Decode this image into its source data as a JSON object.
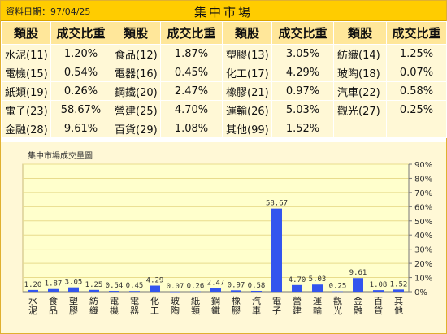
{
  "header": {
    "date_label": "資料日期：",
    "date": "97/04/25",
    "title": "集中市場"
  },
  "table": {
    "headers": [
      "類股",
      "成交比重",
      "類股",
      "成交比重",
      "類股",
      "成交比重",
      "類股",
      "成交比重"
    ],
    "rows": [
      [
        [
          "水泥(11)",
          "1.20%"
        ],
        [
          "食品(12)",
          "1.87%"
        ],
        [
          "塑膠(13)",
          "3.05%"
        ],
        [
          "紡織(14)",
          "1.25%"
        ]
      ],
      [
        [
          "電機(15)",
          "0.54%"
        ],
        [
          "電器(16)",
          "0.45%"
        ],
        [
          "化工(17)",
          "4.29%"
        ],
        [
          "玻陶(18)",
          "0.07%"
        ]
      ],
      [
        [
          "紙類(19)",
          "0.26%"
        ],
        [
          "鋼鐵(20)",
          "2.47%"
        ],
        [
          "橡膠(21)",
          "0.97%"
        ],
        [
          "汽車(22)",
          "0.58%"
        ]
      ],
      [
        [
          "電子(23)",
          "58.67%"
        ],
        [
          "營建(25)",
          "4.70%"
        ],
        [
          "運輸(26)",
          "5.03%"
        ],
        [
          "觀光(27)",
          "0.25%"
        ]
      ],
      [
        [
          "金融(28)",
          "9.61%"
        ],
        [
          "百貨(29)",
          "1.08%"
        ],
        [
          "其他(99)",
          "1.52%"
        ],
        [
          "",
          ""
        ]
      ]
    ]
  },
  "chart_data": {
    "type": "bar",
    "title": "集中市場成交量圖",
    "categories": [
      "水泥",
      "食品",
      "塑膠",
      "紡織",
      "電機",
      "電器",
      "化工",
      "玻陶",
      "紙類",
      "鋼鐵",
      "橡膠",
      "汽車",
      "電子",
      "營建",
      "運輸",
      "觀光",
      "金融",
      "百貨",
      "其他"
    ],
    "values": [
      1.2,
      1.87,
      3.05,
      1.25,
      0.54,
      0.45,
      4.29,
      0.07,
      0.26,
      2.47,
      0.97,
      0.58,
      58.67,
      4.7,
      5.03,
      0.25,
      9.61,
      1.08,
      1.52
    ],
    "value_labels": [
      "1.20",
      "1.87",
      "3.05",
      "1.25",
      "0.54",
      "0.45",
      "4.29",
      "0.07",
      "0.26",
      "2.47",
      "0.97",
      "0.58",
      "58.67",
      "4.70",
      "5.03",
      "0.25",
      "9.61",
      "1.08",
      "1.52"
    ],
    "ylim": [
      0,
      90
    ],
    "yticks": [
      0,
      10,
      20,
      30,
      40,
      50,
      60,
      70,
      80,
      90
    ],
    "ytick_labels": [
      "0%",
      "10%",
      "20%",
      "30%",
      "40%",
      "50%",
      "60%",
      "70%",
      "80%",
      "90%"
    ],
    "y_axis_side": "right",
    "grid": true,
    "bar_color": "#3355ee",
    "plot_background": "#ffffcc",
    "gridline_color": "#e8dc8c"
  }
}
